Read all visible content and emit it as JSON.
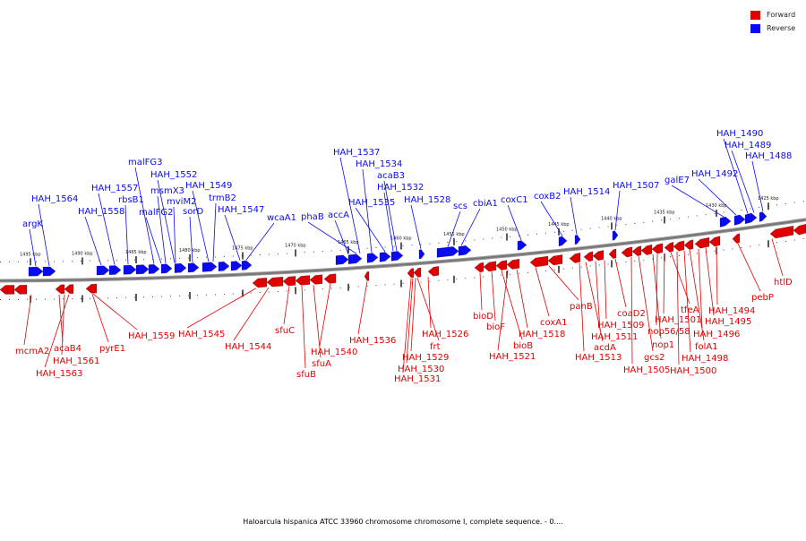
{
  "colors": {
    "forward": "#e00000",
    "reverse": "#0a0af0",
    "backbone": "#777777"
  },
  "legend": {
    "forward_label": "Forward",
    "reverse_label": "Reverse"
  },
  "caption": "Haloarcula hispanica ATCC 33960 chromosome chromosome I, complete sequence. - 0....",
  "ticks": [
    {
      "label": "1495 kbp",
      "kbp": 1495
    },
    {
      "label": "1490 kbp",
      "kbp": 1490
    },
    {
      "label": "1485 kbp",
      "kbp": 1485
    },
    {
      "label": "1480 kbp",
      "kbp": 1480
    },
    {
      "label": "1475 kbp",
      "kbp": 1475
    },
    {
      "label": "1470 kbp",
      "kbp": 1470
    },
    {
      "label": "1465 kbp",
      "kbp": 1465
    },
    {
      "label": "1460 kbp",
      "kbp": 1460
    },
    {
      "label": "1455 kbp",
      "kbp": 1455
    },
    {
      "label": "1450 kbp",
      "kbp": 1450
    },
    {
      "label": "1445 kbp",
      "kbp": 1445
    },
    {
      "label": "1440 kbp",
      "kbp": 1440
    },
    {
      "label": "1435 kbp",
      "kbp": 1435
    },
    {
      "label": "1430 kbp",
      "kbp": 1430
    },
    {
      "label": "1425 kbp",
      "kbp": 1425
    }
  ],
  "reverse_labels": [
    "argK",
    "HAH_1564",
    "HAH_1558",
    "HAH_1557",
    "rbsB1",
    "malFG3",
    "malFG2",
    "msmX3",
    "mviM2",
    "HAH_1552",
    "sorD",
    "HAH_1549",
    "trmB2",
    "HAH_1547",
    "wcaA1",
    "phaB",
    "accA",
    "HAH_1537",
    "HAH_1535",
    "HAH_1534",
    "acaB3",
    "HAH_1532",
    "HAH_1528",
    "scs",
    "cbiA1",
    "coxC1",
    "coxB2",
    "HAH_1514",
    "HAH_1507",
    "galE7",
    "HAH_1492",
    "HAH_1490",
    "HAH_1489",
    "HAH_1488"
  ],
  "forward_labels": [
    "mcmA2",
    "acaB4",
    "HAH_1561",
    "HAH_1563",
    "pyrE1",
    "HAH_1559",
    "HAH_1545",
    "HAH_1544",
    "sfuC",
    "sfuB",
    "sfuA",
    "HAH_1540",
    "HAH_1536",
    "HAH_1531",
    "HAH_1530",
    "HAH_1529",
    "frt",
    "HAH_1526",
    "bioD",
    "bioF",
    "bioB",
    "HAH_1521",
    "HAH_1518",
    "coxA1",
    "panB",
    "acdA",
    "HAH_1513",
    "HAH_1511",
    "HAH_1509",
    "coaD2",
    "HAH_1505",
    "gcs2",
    "nop1",
    "nop56/58",
    "HAH_1501",
    "tfeA",
    "HAH_1500",
    "HAH_1498",
    "folA1",
    "HAH_1496",
    "HAH_1495",
    "HAH_1494",
    "pebP",
    "htlD"
  ]
}
